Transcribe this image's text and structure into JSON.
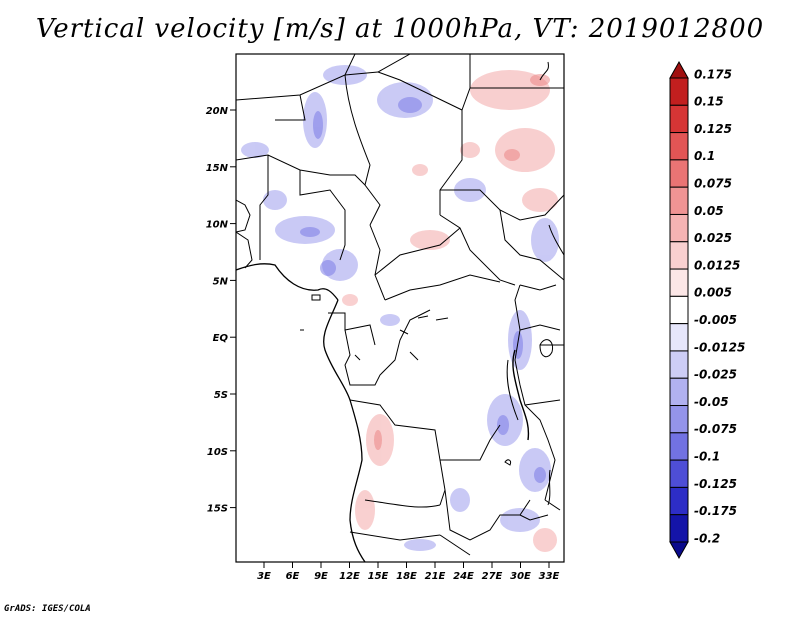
{
  "title": "Vertical velocity [m/s] at 1000hPa, VT: 2019012800",
  "credit": "GrADS: IGES/COLA",
  "map": {
    "lat_ticks": [
      "20N",
      "15N",
      "10N",
      "5N",
      "EQ",
      "5S",
      "10S",
      "15S"
    ],
    "lon_ticks": [
      "3E",
      "6E",
      "9E",
      "12E",
      "15E",
      "18E",
      "21E",
      "24E",
      "27E",
      "30E",
      "33E"
    ],
    "colors": {
      "border": "#000000",
      "positive": "#f3a8a8",
      "negative": "#9c9cf0"
    }
  },
  "colorbar": {
    "labels": [
      "0.175",
      "0.15",
      "0.125",
      "0.1",
      "0.075",
      "0.05",
      "0.025",
      "0.0125",
      "0.005",
      "-0.005",
      "-0.0125",
      "-0.025",
      "-0.05",
      "-0.075",
      "-0.1",
      "-0.125",
      "-0.175",
      "-0.2"
    ],
    "colors": [
      "#a01010",
      "#c21f1f",
      "#d63535",
      "#e25555",
      "#ea7474",
      "#f09494",
      "#f5b3b3",
      "#f9d0d0",
      "#fce7e7",
      "#ffffff",
      "#e6e6fb",
      "#cdcdf6",
      "#b1b1f0",
      "#9494ea",
      "#7272e2",
      "#4e4ed6",
      "#2d2dc6",
      "#1414a8",
      "#0a0a8c"
    ]
  }
}
